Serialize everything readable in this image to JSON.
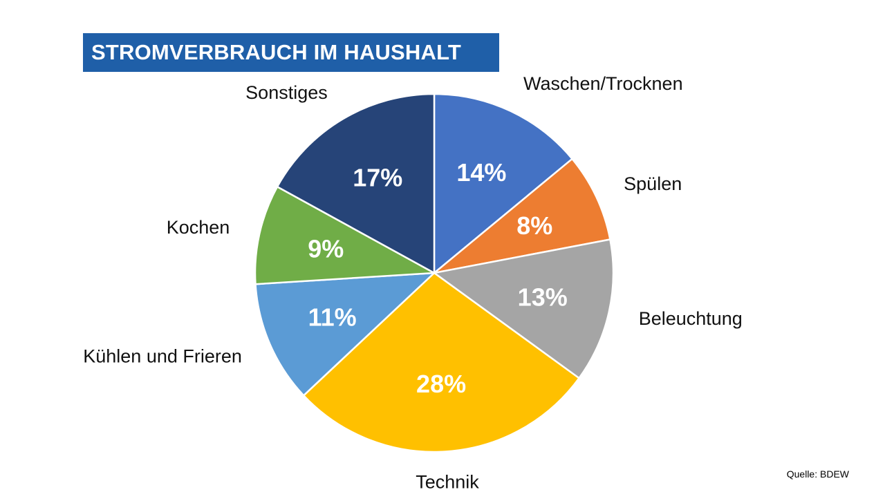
{
  "chart_data": {
    "type": "pie",
    "title": "STROMVERBRAUCH IM HAUSHALT",
    "slices": [
      {
        "label": "Waschen/Trocknen",
        "value": 14,
        "value_label": "14%",
        "color": "#4472c4"
      },
      {
        "label": "Spülen",
        "value": 8,
        "value_label": "8%",
        "color": "#ed7d31"
      },
      {
        "label": "Beleuchtung",
        "value": 13,
        "value_label": "13%",
        "color": "#a5a5a5"
      },
      {
        "label": "Technik",
        "value": 28,
        "value_label": "28%",
        "color": "#ffc000"
      },
      {
        "label": "Kühlen und Frieren",
        "value": 11,
        "value_label": "11%",
        "color": "#5b9bd5"
      },
      {
        "label": "Kochen",
        "value": 9,
        "value_label": "9%",
        "color": "#70ad47"
      },
      {
        "label": "Sonstiges",
        "value": 17,
        "value_label": "17%",
        "color": "#264478"
      }
    ],
    "source": "Quelle: BDEW"
  },
  "colors": {
    "title_background": "#1f5fa8",
    "title_text": "#ffffff",
    "slice_border": "#ffffff"
  }
}
